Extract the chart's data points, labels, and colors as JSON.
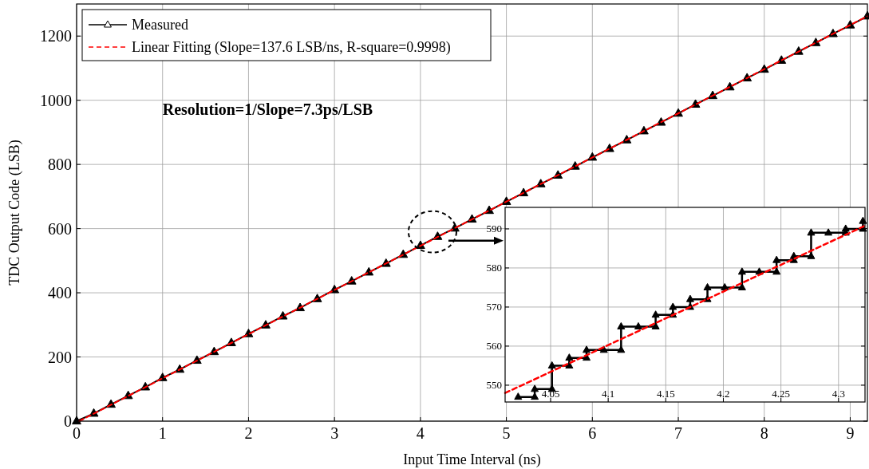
{
  "chart_data": [
    {
      "type": "line",
      "xlabel": "Input Time Interval (ns)",
      "ylabel": "TDC Output Code (LSB)",
      "annotations": [
        "Resolution=1/Slope=7.3ps/LSB"
      ],
      "xlim": [
        0,
        9.2
      ],
      "ylim": [
        0,
        1300
      ],
      "xticks": [
        0,
        1,
        2,
        3,
        4,
        5,
        6,
        7,
        8,
        9
      ],
      "yticks": [
        0,
        200,
        400,
        600,
        800,
        1000,
        1200
      ],
      "grid": true,
      "legend": "top left",
      "series": [
        {
          "name": "Measured",
          "color": "#000000",
          "marker": "triangle",
          "line_style": "solid",
          "x": [
            0,
            0.2,
            0.4,
            0.6,
            0.8,
            1.0,
            1.2,
            1.4,
            1.6,
            1.8,
            2.0,
            2.2,
            2.4,
            2.6,
            2.8,
            3.0,
            3.2,
            3.4,
            3.6,
            3.8,
            4.0,
            4.2,
            4.4,
            4.6,
            4.8,
            5.0,
            5.2,
            5.4,
            5.6,
            5.8,
            6.0,
            6.2,
            6.4,
            6.6,
            6.8,
            7.0,
            7.2,
            7.4,
            7.6,
            7.8,
            8.0,
            8.2,
            8.4,
            8.6,
            8.8,
            9.0,
            9.2
          ],
          "values": [
            0,
            24,
            52,
            79,
            106,
            135,
            161,
            189,
            216,
            244,
            272,
            299,
            327,
            353,
            381,
            409,
            436,
            464,
            491,
            519,
            547,
            575,
            601,
            629,
            656,
            684,
            711,
            739,
            766,
            794,
            822,
            849,
            876,
            904,
            931,
            959,
            987,
            1014,
            1041,
            1069,
            1096,
            1124,
            1152,
            1179,
            1207,
            1234,
            1262
          ]
        },
        {
          "name": "Linear Fitting (Slope=137.6 LSB/ns, R-square=0.9998)",
          "color": "#ff0000",
          "marker": "none",
          "line_style": "dashed",
          "x": [
            0.03,
            9.2
          ],
          "values": [
            0,
            1262
          ]
        }
      ]
    },
    {
      "type": "line",
      "xlim": [
        4.0105,
        4.323
      ],
      "ylim": [
        545.7,
        595.5
      ],
      "xticks": [
        4.05,
        4.1,
        4.15,
        4.2,
        4.25,
        4.3
      ],
      "yticks": [
        550,
        560,
        570,
        580,
        590
      ],
      "grid": true,
      "series": [
        {
          "color": "#000000",
          "marker": "triangle",
          "line_style": "solid",
          "x": [
            4.0218,
            4.0362,
            4.0362,
            4.0512,
            4.0512,
            4.0662,
            4.0662,
            4.0812,
            4.0812,
            4.0962,
            4.1112,
            4.1112,
            4.1262,
            4.1412,
            4.1412,
            4.1562,
            4.1562,
            4.1712,
            4.1712,
            4.1862,
            4.1862,
            4.2012,
            4.2162,
            4.2162,
            4.2312,
            4.2462,
            4.2462,
            4.2612,
            4.2612,
            4.2762,
            4.2762,
            4.2912,
            4.3062,
            4.3062,
            4.3212,
            4.3212
          ],
          "values": [
            547,
            547,
            549,
            549,
            555,
            555,
            557,
            557,
            559,
            559,
            559,
            565,
            565,
            565,
            568,
            568,
            570,
            570,
            572,
            572,
            575,
            575,
            575,
            579,
            579,
            579,
            582,
            582,
            583,
            583,
            589,
            589,
            589,
            590,
            590,
            592
          ]
        },
        {
          "color": "#ff0000",
          "marker": "none",
          "line_style": "dashed",
          "x": [
            4.0105,
            4.323
          ],
          "values": [
            548,
            590.8
          ]
        }
      ]
    }
  ]
}
